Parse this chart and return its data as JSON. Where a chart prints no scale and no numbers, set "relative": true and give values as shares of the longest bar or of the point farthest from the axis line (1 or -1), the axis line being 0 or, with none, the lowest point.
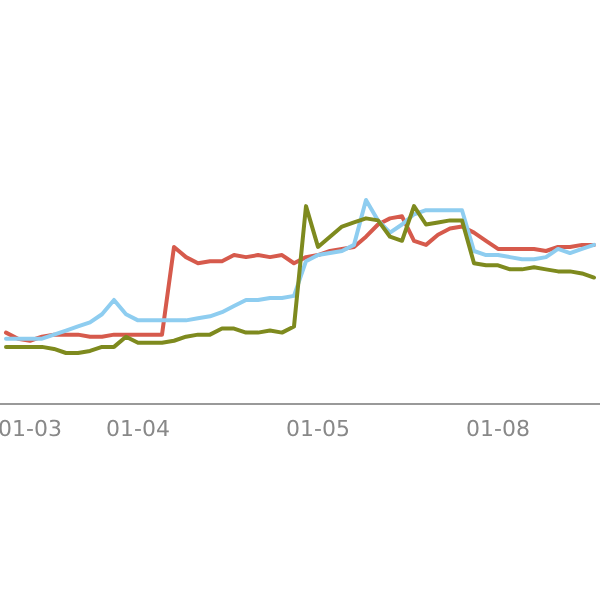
{
  "chart_data": {
    "type": "line",
    "relative": true,
    "categories": [
      null,
      null,
      "01-03",
      null,
      null,
      null,
      null,
      null,
      null,
      null,
      null,
      "01-04",
      null,
      null,
      null,
      null,
      null,
      null,
      null,
      null,
      null,
      null,
      null,
      null,
      null,
      null,
      "01-05",
      null,
      null,
      null,
      null,
      null,
      null,
      null,
      null,
      null,
      null,
      null,
      null,
      null,
      null,
      "01-08",
      null,
      null,
      null,
      null,
      null,
      null,
      null,
      null
    ],
    "series": [
      {
        "color": "#d65a4c",
        "values": [
          0.35,
          0.32,
          0.31,
          0.33,
          0.34,
          0.34,
          0.34,
          0.33,
          0.33,
          0.34,
          0.34,
          0.34,
          0.34,
          0.34,
          0.77,
          0.72,
          0.69,
          0.7,
          0.7,
          0.73,
          0.72,
          0.73,
          0.72,
          0.73,
          0.69,
          0.72,
          0.73,
          0.75,
          0.76,
          0.77,
          0.82,
          0.88,
          0.91,
          0.92,
          0.8,
          0.78,
          0.83,
          0.86,
          0.87,
          0.84,
          0.8,
          0.76,
          0.76,
          0.76,
          0.76,
          0.75,
          0.77,
          0.77,
          0.78,
          0.78
        ]
      },
      {
        "color": "#8ecdf0",
        "values": [
          0.32,
          0.32,
          0.32,
          0.32,
          0.34,
          0.36,
          0.38,
          0.4,
          0.44,
          0.51,
          0.44,
          0.41,
          0.41,
          0.41,
          0.41,
          0.41,
          0.42,
          0.43,
          0.45,
          0.48,
          0.51,
          0.51,
          0.52,
          0.52,
          0.53,
          0.7,
          0.73,
          0.74,
          0.75,
          0.78,
          1,
          0.9,
          0.84,
          0.88,
          0.93,
          0.95,
          0.95,
          0.95,
          0.95,
          0.75,
          0.73,
          0.73,
          0.72,
          0.71,
          0.71,
          0.72,
          0.76,
          0.74,
          0.76,
          0.78
        ]
      },
      {
        "color": "#7e8a1e",
        "values": [
          0.28,
          0.28,
          0.28,
          0.28,
          0.27,
          0.25,
          0.25,
          0.26,
          0.28,
          0.28,
          0.33,
          0.3,
          0.3,
          0.3,
          0.31,
          0.33,
          0.34,
          0.34,
          0.37,
          0.37,
          0.35,
          0.35,
          0.36,
          0.35,
          0.38,
          0.97,
          0.77,
          0.82,
          0.87,
          0.89,
          0.91,
          0.9,
          0.82,
          0.8,
          0.97,
          0.88,
          0.89,
          0.9,
          0.9,
          0.69,
          0.68,
          0.68,
          0.66,
          0.66,
          0.67,
          0.66,
          0.65,
          0.65,
          0.64,
          0.62
        ]
      }
    ]
  }
}
